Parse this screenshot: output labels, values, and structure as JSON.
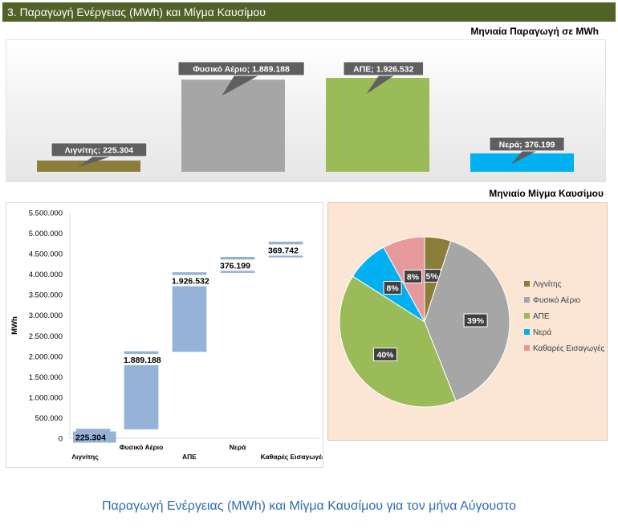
{
  "header": {
    "title": "3. Παραγωγή Ενέργειας (MWh) και Μίγμα Καυσίμου"
  },
  "caption": "Παραγωγή Ενέργειας (MWh) και Μίγμα Καυσίμου για τον μήνα Αύγουστο",
  "colors": {
    "lignite": "#8b7d3a",
    "gas": "#a6a6a6",
    "res": "#9bbb59",
    "hydro": "#00b0f0",
    "imports": "#e6999a",
    "waterfall": "#95b3d7",
    "header": "#4f6228"
  },
  "chart_data": [
    {
      "type": "bar",
      "title": "Μηνιαία Παραγωγή σε MWh",
      "categories": [
        "Λιγνίτης",
        "Φυσικό Αέριο",
        "ΑΠΕ",
        "Νερά"
      ],
      "values": [
        225304,
        1889188,
        1926532,
        376199
      ],
      "data_labels": [
        "Λιγνίτης; 225.304",
        "Φυσικό Αέριο; 1.889.188",
        "ΑΠΕ; 1.926.532",
        "Νερά; 376.199"
      ],
      "series_colors": [
        "#8b7d3a",
        "#a6a6a6",
        "#9bbb59",
        "#00b0f0"
      ]
    },
    {
      "type": "bar",
      "subtype": "waterfall",
      "categories": [
        "Λιγνίτης",
        "Φυσικό Αέριο",
        "ΑΠΕ",
        "Νερά",
        "Καθαρές Εισαγωγές"
      ],
      "values": [
        225304,
        1889188,
        1926532,
        376199,
        369742
      ],
      "data_labels": [
        "225.304",
        "1.889.188",
        "1.926.532",
        "376.199",
        "369.742"
      ],
      "ylabel": "MWh",
      "ylim": [
        0,
        5500000
      ],
      "yticks": [
        "0",
        "500.000",
        "1.000.000",
        "1.500.000",
        "2.000.000",
        "2.500.000",
        "3.000.000",
        "3.500.000",
        "4.000.000",
        "4.500.000",
        "5.000.000",
        "5.500.000"
      ]
    },
    {
      "type": "pie",
      "title": "Μηνιαίο Μίγμα Καυσίμου",
      "labels": [
        "Λιγνίτης",
        "Φυσικό Αέριο",
        "ΑΠΕ",
        "Νερά",
        "Καθαρές Εισαγωγές"
      ],
      "values": [
        5,
        39,
        40,
        8,
        8
      ],
      "data_labels": [
        "5%",
        "39%",
        "40%",
        "8%",
        "8%"
      ],
      "legend": "right"
    }
  ]
}
